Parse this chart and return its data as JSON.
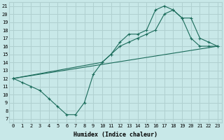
{
  "xlabel": "Humidex (Indice chaleur)",
  "background_color": "#c8e8e8",
  "grid_color": "#b0d0d0",
  "line_color": "#1a6b5a",
  "xlim": [
    -0.5,
    23.5
  ],
  "ylim": [
    6.5,
    21.5
  ],
  "xticks": [
    0,
    1,
    2,
    3,
    4,
    5,
    6,
    7,
    8,
    9,
    10,
    11,
    12,
    13,
    14,
    15,
    16,
    17,
    18,
    19,
    20,
    21,
    22,
    23
  ],
  "yticks": [
    7,
    8,
    9,
    10,
    11,
    12,
    13,
    14,
    15,
    16,
    17,
    18,
    19,
    20,
    21
  ],
  "line1_x": [
    0,
    1,
    2,
    3,
    4,
    5,
    6,
    7,
    8,
    9,
    10,
    11,
    12,
    13,
    14,
    15,
    16,
    17,
    18,
    19,
    20,
    21,
    22,
    23
  ],
  "line1_y": [
    12,
    11.5,
    11,
    10.5,
    9.5,
    8.5,
    7.5,
    7.5,
    9,
    12.5,
    14,
    15,
    16.5,
    17.5,
    17.5,
    18,
    20.5,
    21,
    20.5,
    19.5,
    17,
    16,
    16,
    16
  ],
  "line2_x": [
    0,
    23
  ],
  "line2_y": [
    12,
    16
  ],
  "line3_x": [
    0,
    10,
    11,
    12,
    13,
    14,
    15,
    16,
    17,
    18,
    19,
    20,
    21,
    22,
    23
  ],
  "line3_y": [
    12,
    14,
    15,
    16,
    16.5,
    17,
    17.5,
    18,
    20,
    20.5,
    19.5,
    19.5,
    17,
    16.5,
    16
  ],
  "xlabel_fontsize": 6,
  "tick_fontsize": 5
}
